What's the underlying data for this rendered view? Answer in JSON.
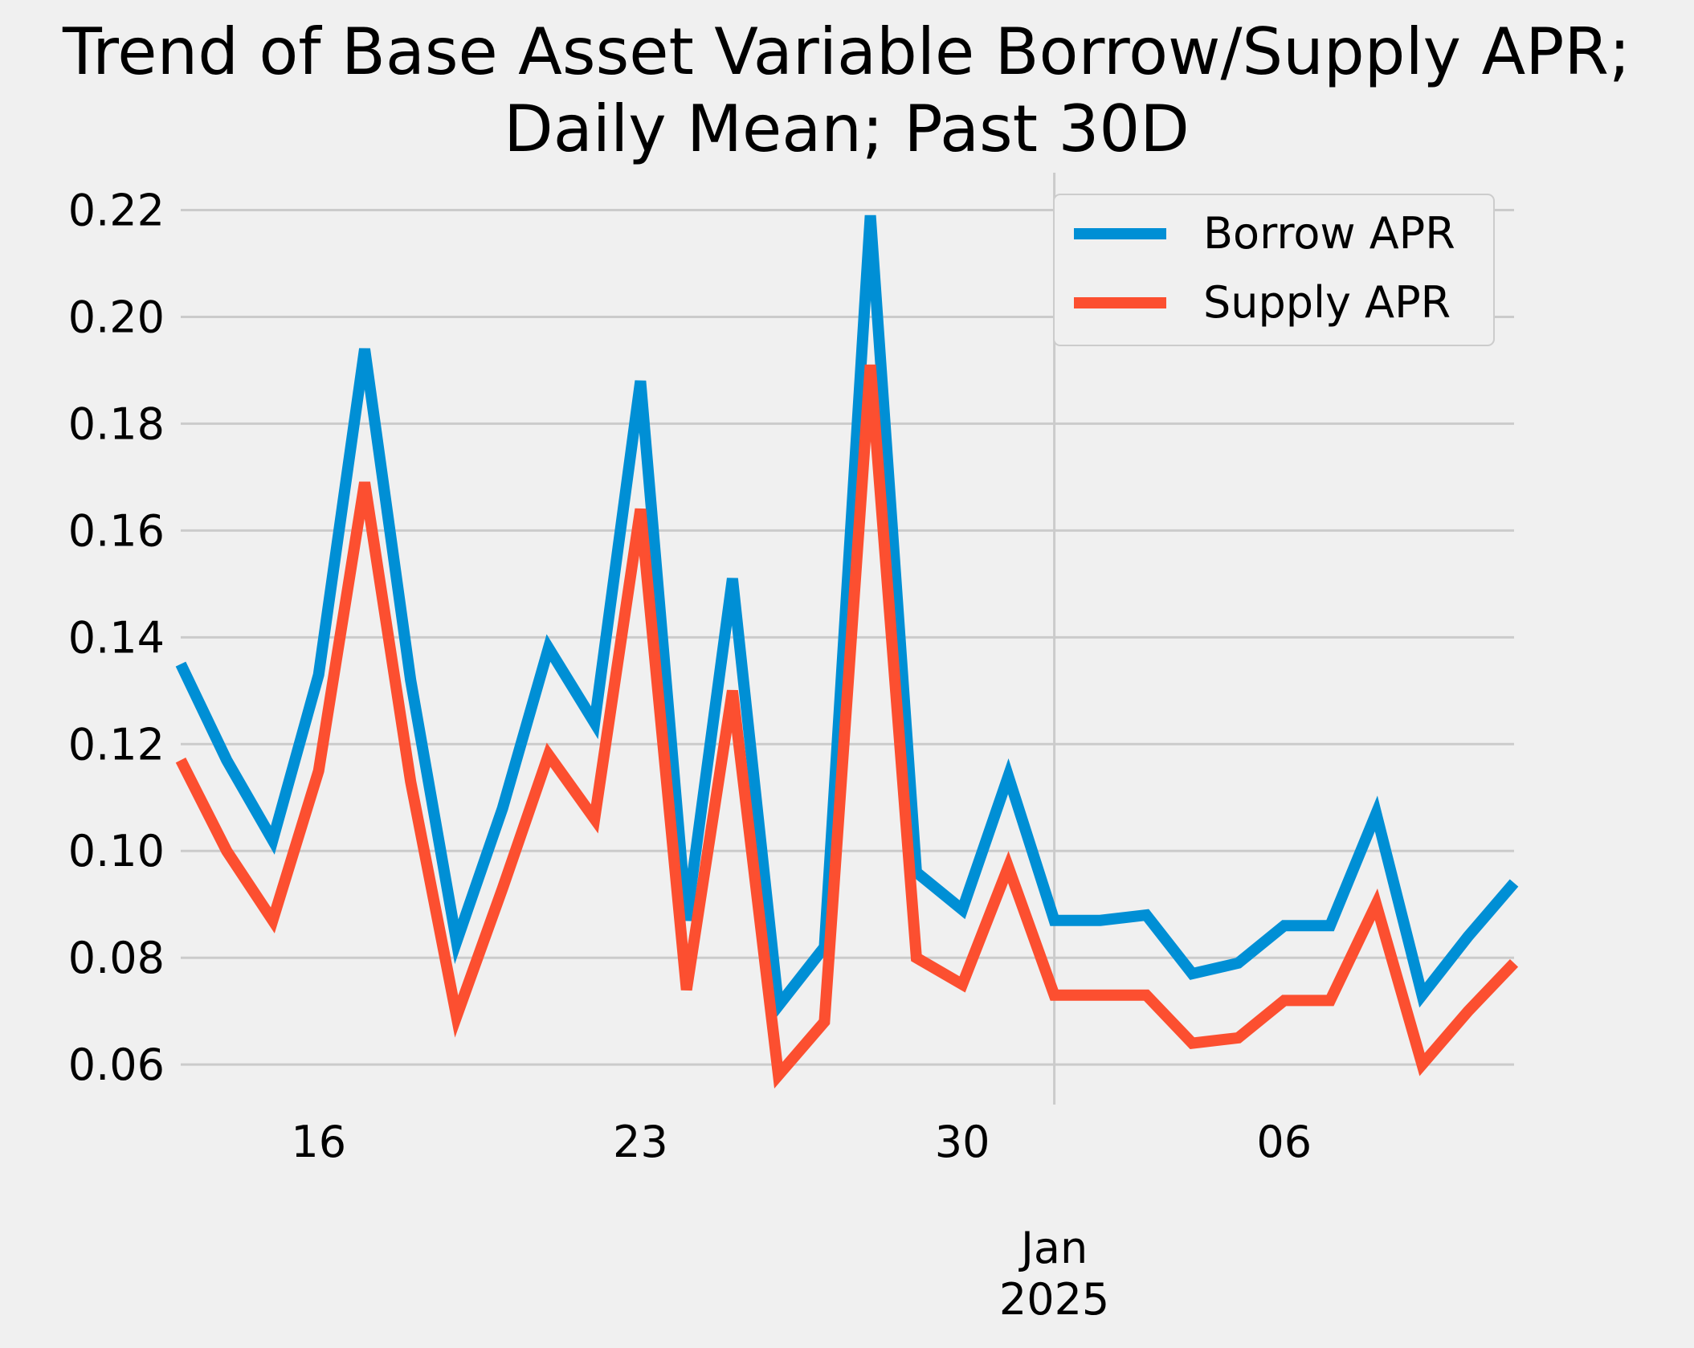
{
  "chart_data": {
    "type": "line",
    "title_lines": [
      "Trend of Base Asset Variable Borrow/Supply APR;",
      "Daily Mean; Past 30D"
    ],
    "xlabel": "",
    "ylabel": "",
    "x": [
      "2024-12-13",
      "2024-12-14",
      "2024-12-15",
      "2024-12-16",
      "2024-12-17",
      "2024-12-18",
      "2024-12-19",
      "2024-12-20",
      "2024-12-21",
      "2024-12-22",
      "2024-12-23",
      "2024-12-24",
      "2024-12-25",
      "2024-12-26",
      "2024-12-27",
      "2024-12-28",
      "2024-12-29",
      "2024-12-30",
      "2024-12-31",
      "2025-01-01",
      "2025-01-02",
      "2025-01-03",
      "2025-01-04",
      "2025-01-05",
      "2025-01-06",
      "2025-01-07",
      "2025-01-08",
      "2025-01-09",
      "2025-01-10",
      "2025-01-11"
    ],
    "series": [
      {
        "name": "Borrow APR",
        "color": "#008fd5",
        "values": [
          0.135,
          0.117,
          0.102,
          0.133,
          0.194,
          0.132,
          0.083,
          0.108,
          0.138,
          0.124,
          0.188,
          0.087,
          0.151,
          0.071,
          0.082,
          0.219,
          0.096,
          0.089,
          0.114,
          0.087,
          0.087,
          0.088,
          0.077,
          0.079,
          0.086,
          0.086,
          0.107,
          0.073,
          0.084,
          0.094
        ]
      },
      {
        "name": "Supply APR",
        "color": "#fc4f30",
        "values": [
          0.117,
          0.1,
          0.087,
          0.115,
          0.169,
          0.113,
          0.069,
          0.093,
          0.118,
          0.106,
          0.164,
          0.074,
          0.13,
          0.058,
          0.068,
          0.191,
          0.08,
          0.075,
          0.097,
          0.073,
          0.073,
          0.073,
          0.064,
          0.065,
          0.072,
          0.072,
          0.09,
          0.06,
          0.07,
          0.079
        ]
      }
    ],
    "ylim": [
      0.0525,
      0.227
    ],
    "yticks": [
      0.06,
      0.08,
      0.1,
      0.12,
      0.14,
      0.16,
      0.18,
      0.2,
      0.22
    ],
    "ytick_labels": [
      "0.06",
      "0.08",
      "0.10",
      "0.12",
      "0.14",
      "0.16",
      "0.18",
      "0.20",
      "0.22"
    ],
    "xticks": [
      {
        "date": "2024-12-16",
        "label": "16"
      },
      {
        "date": "2024-12-23",
        "label": "23"
      },
      {
        "date": "2024-12-30",
        "label": "30"
      },
      {
        "date": "2025-01-06",
        "label": "06"
      }
    ],
    "major_xtick": {
      "date": "2025-01-01",
      "label_lines": [
        "Jan",
        "2025"
      ]
    },
    "grid": true,
    "legend_position": "upper right",
    "style": "fivethirtyeight",
    "background": "#f0f0f0",
    "grid_color": "#cbcbcb"
  }
}
